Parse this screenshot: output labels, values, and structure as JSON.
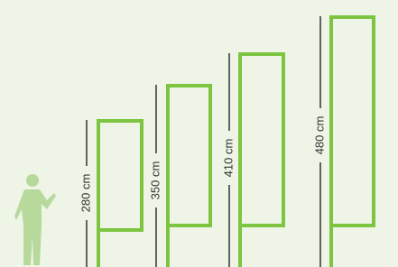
{
  "flags": [
    {
      "label": "280 cm"
    },
    {
      "label": "350 cm"
    },
    {
      "label": "410 cm"
    },
    {
      "label": "480 cm"
    }
  ]
}
